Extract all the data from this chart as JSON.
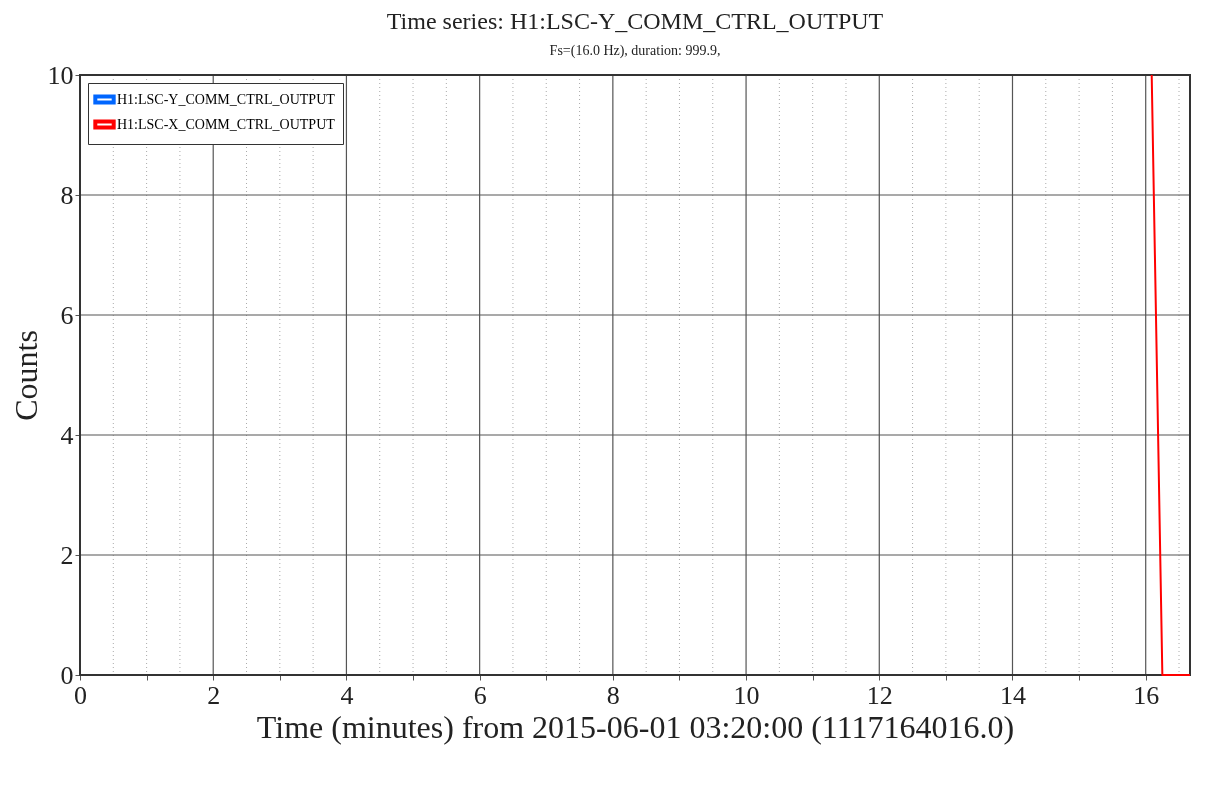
{
  "chart_data": {
    "type": "line",
    "title": "Time series:  H1:LSC-Y_COMM_CTRL_OUTPUT",
    "subtitle": "Fs=(16.0 Hz), duration: 999.9,",
    "xlabel": "Time (minutes) from 2015-06-01 03:20:00 (1117164016.0)",
    "ylabel": "Counts",
    "series": [
      {
        "name": "H1:LSC-Y_COMM_CTRL_OUTPUT",
        "color": "#0066ff"
      },
      {
        "name": "H1:LSC-X_COMM_CTRL_OUTPUT",
        "color": "#ff0000",
        "x": [
          16.09,
          16.25,
          16.665
        ],
        "values": [
          10,
          0,
          0
        ]
      }
    ],
    "xlim": [
      0,
      16.665
    ],
    "ylim": [
      0,
      10
    ],
    "xticks": [
      0,
      {
        "value": 0.5,
        "label": null
      },
      {
        "value": 1,
        "label": null
      },
      {
        "value": 1.5,
        "label": null
      },
      2,
      {
        "value": 2.5,
        "label": null
      },
      {
        "value": 3,
        "label": null
      },
      {
        "value": 3.5,
        "label": null
      },
      4,
      {
        "value": 4.5,
        "label": null
      },
      {
        "value": 5,
        "label": null
      },
      {
        "value": 5.5,
        "label": null
      },
      6,
      {
        "value": 6.5,
        "label": null
      },
      {
        "value": 7,
        "label": null
      },
      {
        "value": 7.5,
        "label": null
      },
      8,
      {
        "value": 8.5,
        "label": null
      },
      {
        "value": 9,
        "label": null
      },
      {
        "value": 9.5,
        "label": null
      },
      10,
      {
        "value": 10.5,
        "label": null
      },
      {
        "value": 11,
        "label": null
      },
      {
        "value": 11.5,
        "label": null
      },
      12,
      {
        "value": 12.5,
        "label": null
      },
      {
        "value": 13,
        "label": null
      },
      {
        "value": 13.5,
        "label": null
      },
      14,
      {
        "value": 14.5,
        "label": null
      },
      {
        "value": 15,
        "label": null
      },
      {
        "value": 15.5,
        "label": null
      },
      16,
      {
        "value": 16.5,
        "label": null
      }
    ],
    "yticks": [
      0,
      2,
      4,
      6,
      8,
      10
    ],
    "grid": true,
    "legend": "top left",
    "line_style": "solid",
    "marker": "none"
  }
}
